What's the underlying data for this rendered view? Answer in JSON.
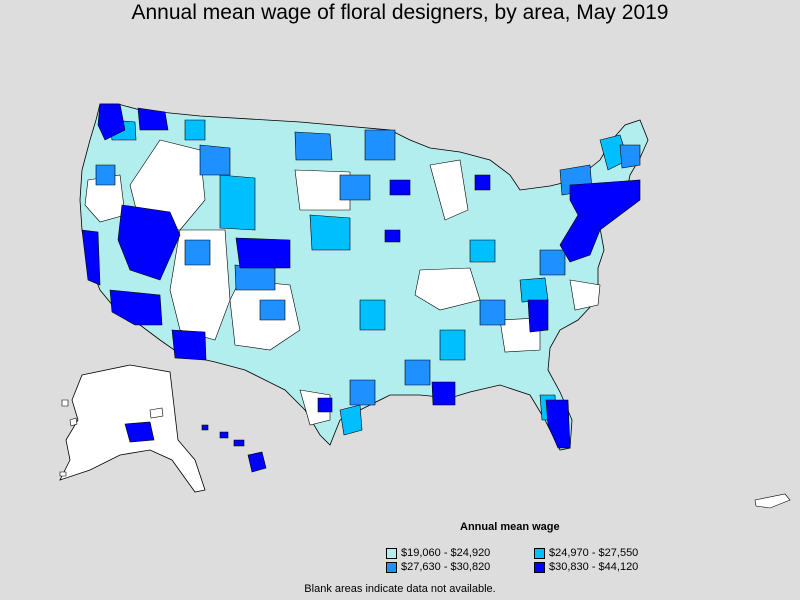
{
  "title": "Annual mean wage of floral designers, by area, May 2019",
  "legend": {
    "title": "Annual mean wage",
    "items": [
      {
        "label": "$19,060 - $24,920",
        "color": "#b2eeee"
      },
      {
        "label": "$24,970 - $27,550",
        "color": "#00bfff"
      },
      {
        "label": "$27,630 - $30,820",
        "color": "#1e90ff"
      },
      {
        "label": "$30,830 - $44,120",
        "color": "#0000ff"
      }
    ]
  },
  "no_data_color": "#ffffff",
  "footnote": "Blank areas indicate data not available."
}
